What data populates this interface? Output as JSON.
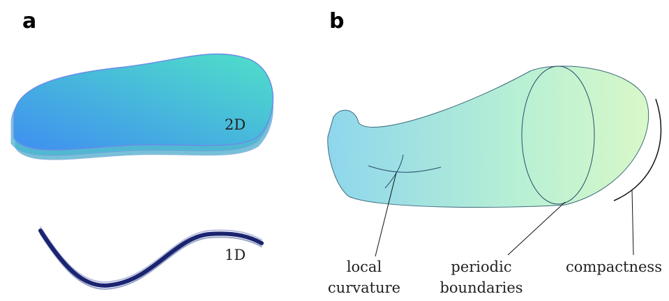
{
  "panels": [
    {
      "label": "a",
      "annotations": [
        {
          "lines": [
            "2D"
          ]
        },
        {
          "lines": [
            "1D"
          ]
        }
      ]
    },
    {
      "label": "b",
      "annotations": [
        {
          "lines": [
            "local",
            "curvature"
          ]
        },
        {
          "lines": [
            "periodic",
            "boundaries"
          ]
        },
        {
          "lines": [
            "compactness"
          ]
        }
      ]
    }
  ]
}
